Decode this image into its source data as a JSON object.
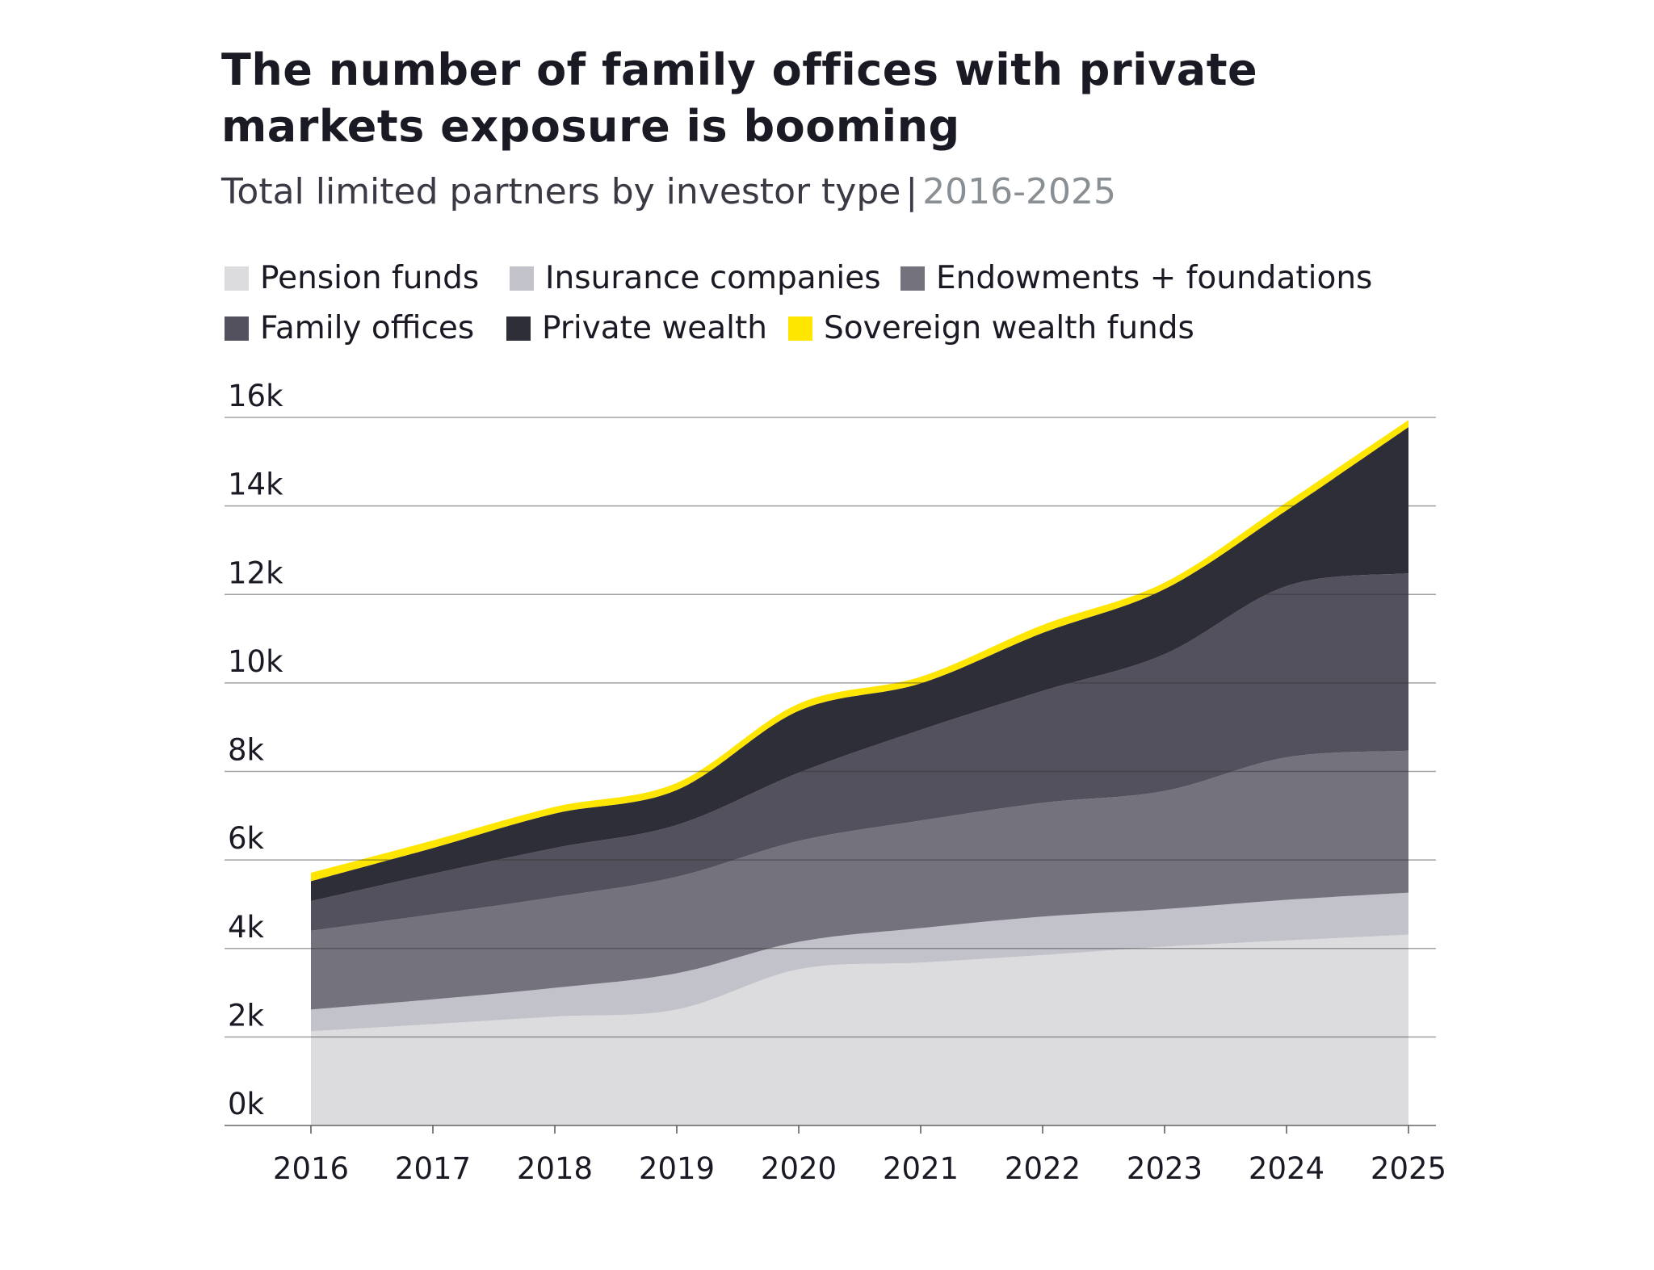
{
  "chart_data": {
    "type": "area",
    "stacked": true,
    "title": "The number of family offices with private markets exposure is booming",
    "subtitle": "Total limited partners by investor type",
    "subtitle_years": "2016-2025",
    "subtitle_separator": "|",
    "xlabel": "",
    "ylabel": "",
    "categories": [
      "2016",
      "2017",
      "2018",
      "2019",
      "2020",
      "2021",
      "2022",
      "2023",
      "2024",
      "2025"
    ],
    "ylim": [
      0,
      16000
    ],
    "y_ticks": [
      0,
      2000,
      4000,
      6000,
      8000,
      10000,
      12000,
      14000,
      16000
    ],
    "y_tick_labels": [
      "0k",
      "2k",
      "4k",
      "6k",
      "8k",
      "10k",
      "12k",
      "14k",
      "16k"
    ],
    "grid": true,
    "legend_position": "top",
    "series": [
      {
        "name": "Pension funds",
        "color": "#dcdcdf",
        "values": [
          2130,
          2290,
          2460,
          2620,
          3530,
          3680,
          3850,
          4040,
          4180,
          4310
        ]
      },
      {
        "name": "Insurance companies",
        "color": "#c2c2ca",
        "values": [
          490,
          560,
          650,
          820,
          620,
          780,
          870,
          850,
          920,
          950
        ]
      },
      {
        "name": "Endowments + foundations",
        "color": "#73727d",
        "values": [
          1780,
          1920,
          2050,
          2180,
          2280,
          2430,
          2570,
          2670,
          3220,
          3210
        ]
      },
      {
        "name": "Family offices",
        "color": "#52515d",
        "values": [
          670,
          920,
          1110,
          1170,
          1540,
          2050,
          2530,
          3090,
          3870,
          4010
        ]
      },
      {
        "name": "Private wealth",
        "color": "#2e2e38",
        "values": [
          450,
          580,
          780,
          790,
          1400,
          1050,
          1310,
          1470,
          1710,
          3300
        ]
      },
      {
        "name": "Sovereign wealth funds",
        "color": "#ffe600",
        "values": [
          190,
          170,
          150,
          160,
          160,
          150,
          180,
          150,
          180,
          160
        ]
      }
    ]
  }
}
